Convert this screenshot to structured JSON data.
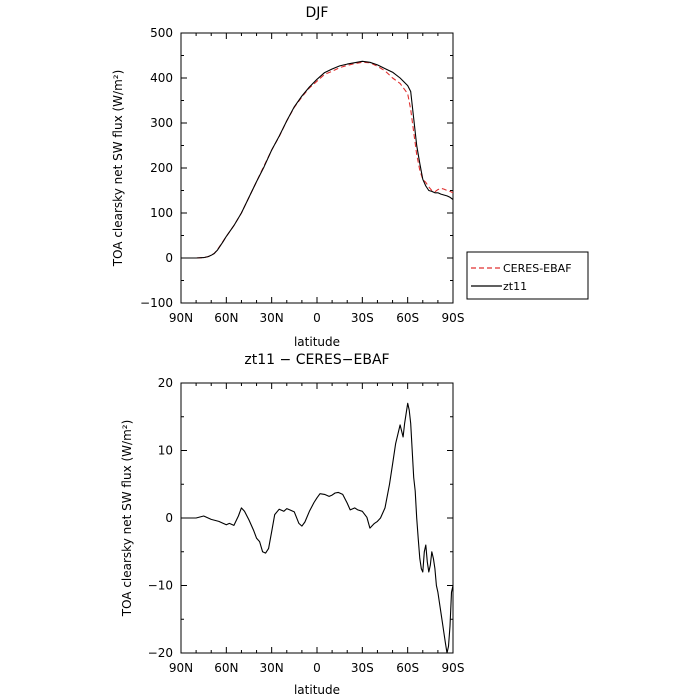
{
  "chart_data": [
    {
      "type": "line",
      "title": "DJF",
      "xlabel": "latitude",
      "ylabel": "TOA clearsky net SW flux (W/m²)",
      "xlim": [
        -90,
        90
      ],
      "ylim": [
        -100,
        500
      ],
      "xticks": [
        -90,
        -60,
        -30,
        0,
        30,
        60,
        90
      ],
      "xtick_labels": [
        "90N",
        "60N",
        "30N",
        "0",
        "30S",
        "60S",
        "90S"
      ],
      "yticks": [
        -100,
        0,
        100,
        200,
        300,
        400,
        500
      ],
      "ytick_labels": [
        "−100",
        "0",
        "100",
        "200",
        "300",
        "400",
        "500"
      ],
      "grid": false,
      "legend_position": "outside-right",
      "series": [
        {
          "name": "CERES-EBAF",
          "color": "#e03030",
          "dash": true,
          "x": [
            -90,
            -80,
            -75,
            -72,
            -70,
            -68,
            -66,
            -64,
            -62,
            -60,
            -55,
            -50,
            -45,
            -40,
            -35,
            -30,
            -25,
            -20,
            -15,
            -10,
            -5,
            0,
            5,
            10,
            15,
            20,
            25,
            30,
            35,
            40,
            45,
            50,
            55,
            60,
            62,
            64,
            66,
            68,
            70,
            72,
            74,
            76,
            78,
            80,
            82,
            84,
            86,
            88,
            90
          ],
          "values": [
            0,
            0,
            1,
            3,
            6,
            10,
            18,
            28,
            38,
            48,
            72,
            100,
            135,
            170,
            205,
            240,
            270,
            305,
            335,
            358,
            378,
            393,
            408,
            415,
            423,
            428,
            432,
            435,
            434,
            426,
            416,
            400,
            388,
            365,
            330,
            280,
            230,
            195,
            175,
            168,
            158,
            150,
            147,
            152,
            155,
            153,
            150,
            148,
            145
          ]
        },
        {
          "name": "zt11",
          "color": "#000000",
          "dash": false,
          "x": [
            -90,
            -80,
            -75,
            -72,
            -70,
            -68,
            -66,
            -64,
            -62,
            -60,
            -55,
            -50,
            -45,
            -40,
            -35,
            -30,
            -25,
            -20,
            -15,
            -10,
            -5,
            0,
            5,
            10,
            15,
            20,
            25,
            30,
            35,
            40,
            45,
            50,
            55,
            60,
            62,
            64,
            66,
            68,
            70,
            72,
            74,
            76,
            78,
            80,
            82,
            84,
            86,
            88,
            90
          ],
          "values": [
            0,
            0,
            1,
            3,
            6,
            10,
            17,
            27,
            37,
            48,
            72,
            100,
            135,
            170,
            203,
            240,
            271,
            305,
            336,
            360,
            380,
            397,
            412,
            420,
            427,
            431,
            434,
            437,
            435,
            429,
            421,
            413,
            400,
            383,
            370,
            310,
            250,
            210,
            175,
            160,
            150,
            148,
            145,
            145,
            142,
            140,
            138,
            135,
            130
          ]
        }
      ]
    },
    {
      "type": "line",
      "title": "zt11 − CERES−EBAF",
      "xlabel": "latitude",
      "ylabel": "TOA clearsky net SW flux (W/m²)",
      "xlim": [
        -90,
        90
      ],
      "ylim": [
        -20,
        20
      ],
      "xticks": [
        -90,
        -60,
        -30,
        0,
        30,
        60,
        90
      ],
      "xtick_labels": [
        "90N",
        "60N",
        "30N",
        "0",
        "30S",
        "60S",
        "90S"
      ],
      "yticks": [
        -20,
        -10,
        0,
        10,
        20
      ],
      "ytick_labels": [
        "−20",
        "−10",
        "0",
        "10",
        "20"
      ],
      "grid": false,
      "series": [
        {
          "name": "",
          "color": "#000000",
          "dash": false,
          "x": [
            -90,
            -85,
            -80,
            -75,
            -70,
            -65,
            -60,
            -58,
            -55,
            -52,
            -50,
            -48,
            -45,
            -42,
            -40,
            -38,
            -36,
            -34,
            -32,
            -30,
            -28,
            -25,
            -22,
            -20,
            -18,
            -15,
            -12,
            -10,
            -8,
            -5,
            -2,
            0,
            2,
            5,
            8,
            10,
            12,
            14,
            17,
            20,
            22,
            25,
            27,
            30,
            33,
            35,
            38,
            40,
            42,
            45,
            48,
            50,
            52,
            55,
            57,
            58,
            60,
            61,
            62,
            63,
            64,
            65,
            66,
            67,
            68,
            69,
            70,
            71,
            72,
            73,
            74,
            75,
            76,
            77,
            78,
            79,
            80,
            81,
            82,
            83,
            84,
            85,
            86,
            87,
            88,
            89,
            90
          ],
          "values": [
            0,
            0,
            0,
            0.3,
            -0.2,
            -0.5,
            -1,
            -0.8,
            -1.1,
            0.3,
            1.5,
            1,
            -0.3,
            -1.8,
            -3,
            -3.5,
            -5,
            -5.2,
            -4.5,
            -2,
            0.5,
            1.3,
            1,
            1.4,
            1.2,
            0.9,
            -0.8,
            -1.2,
            -0.6,
            1,
            2.3,
            3,
            3.6,
            3.5,
            3.2,
            3.4,
            3.7,
            3.8,
            3.5,
            2.2,
            1.2,
            1.5,
            1.2,
            1,
            0.1,
            -1.5,
            -0.8,
            -0.5,
            0,
            1.5,
            5,
            8,
            11,
            13.8,
            12,
            14,
            17,
            16,
            14,
            10,
            6,
            4,
            0,
            -3,
            -6,
            -7.5,
            -8,
            -5,
            -4,
            -6.5,
            -8,
            -7,
            -5,
            -6,
            -7.5,
            -10,
            -11,
            -12.5,
            -14,
            -15.5,
            -17,
            -18.5,
            -20,
            -19,
            -16,
            -11,
            -10
          ]
        }
      ]
    }
  ]
}
